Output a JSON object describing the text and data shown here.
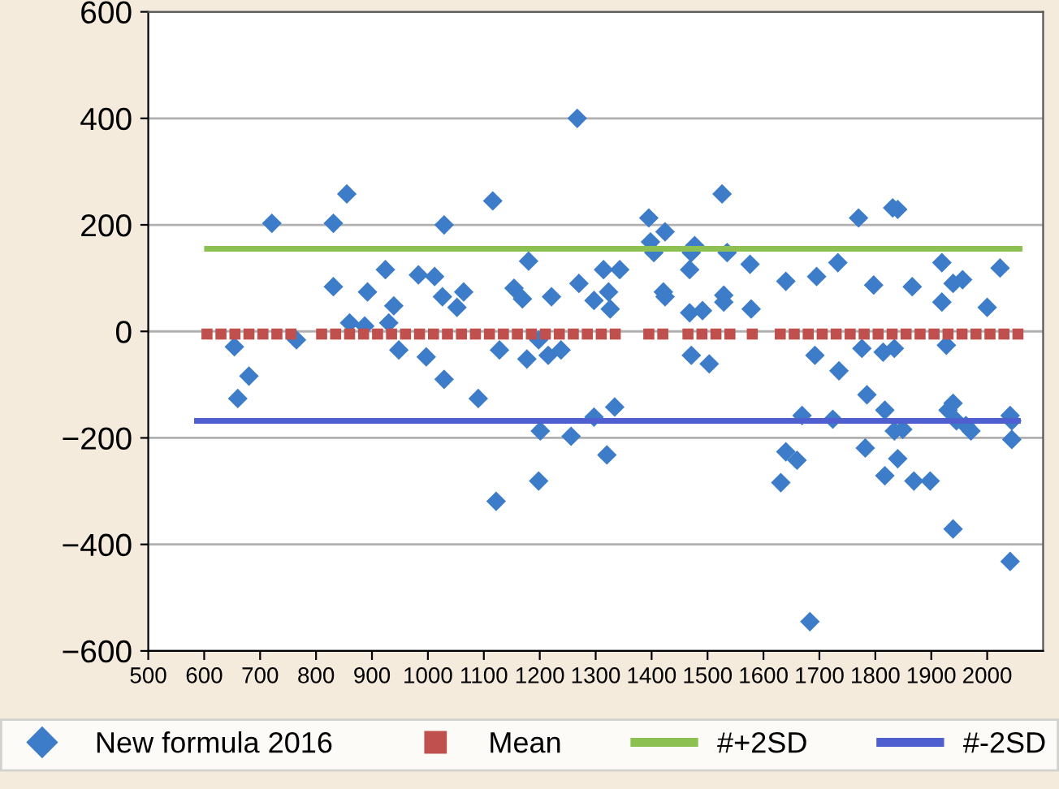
{
  "chart_data": {
    "type": "scatter",
    "xlim": [
      500,
      2100
    ],
    "ylim": [
      -600,
      600
    ],
    "xticks": [
      500,
      600,
      700,
      800,
      900,
      1000,
      1100,
      1200,
      1300,
      1400,
      1500,
      1600,
      1700,
      1800,
      1900,
      2000
    ],
    "yticks": [
      -600,
      -400,
      -200,
      0,
      200,
      400,
      600
    ],
    "grid": "y",
    "legend": "bottom",
    "series": [
      {
        "name": "New formula 2016",
        "marker": "diamond",
        "color": "#3d7cc9",
        "x": [
          654,
          765,
          721,
          831,
          831,
          855,
          860,
          887,
          892,
          924,
          930,
          939,
          948,
          983,
          1012,
          1029,
          1026,
          1052,
          1064,
          1116,
          1128,
          1180,
          1154,
          1169,
          1198,
          1221,
          1267,
          1270,
          660,
          680,
          997,
          1029,
          1090,
          1122,
          1177,
          1198,
          1201,
          1215,
          1238,
          1256,
          1297,
          1314,
          1323,
          1326,
          1343,
          1395,
          1398,
          1404,
          1424,
          1421,
          1424,
          1468,
          1471,
          1477,
          1468,
          1491,
          1526,
          1535,
          1529,
          1529,
          1576,
          1578,
          1640,
          1695,
          1733,
          1770,
          1797,
          1831,
          1840,
          1866,
          1919,
          1919,
          1939,
          1956,
          2000,
          2023,
          1471,
          1692,
          1776,
          1814,
          1834,
          1927,
          1297,
          1334,
          1320,
          1503,
          1631,
          1640,
          1660,
          1669,
          1683,
          1724,
          1735,
          1785,
          1782,
          1817,
          1817,
          1834,
          1849,
          1840,
          1869,
          1898,
          1930,
          1939,
          1945,
          1962,
          1971,
          1939,
          2041,
          2044,
          2044,
          2041
        ],
        "values": [
          -29,
          -16,
          203,
          203,
          84,
          258,
          16,
          10,
          74,
          116,
          16,
          48,
          -35,
          106,
          103,
          200,
          65,
          45,
          74,
          245,
          -35,
          132,
          81,
          61,
          -16,
          65,
          400,
          90,
          -126,
          -84,
          -48,
          -90,
          -126,
          -319,
          -52,
          -281,
          -187,
          -45,
          -35,
          -197,
          58,
          116,
          74,
          42,
          116,
          213,
          168,
          148,
          187,
          74,
          65,
          116,
          148,
          161,
          35,
          39,
          258,
          148,
          68,
          55,
          126,
          42,
          94,
          103,
          129,
          213,
          87,
          232,
          229,
          84,
          129,
          55,
          90,
          97,
          45,
          119,
          -45,
          -45,
          -32,
          -39,
          -32,
          -26,
          -161,
          -142,
          -232,
          -61,
          -284,
          -226,
          -242,
          -158,
          -545,
          -165,
          -74,
          -119,
          -219,
          -271,
          -148,
          -187,
          -184,
          -239,
          -281,
          -281,
          -148,
          -135,
          -168,
          -177,
          -187,
          -371,
          -158,
          -168,
          -203,
          -432
        ]
      },
      {
        "name": "Mean",
        "marker": "square",
        "color": "#c0504d",
        "x": [
          605,
          630,
          655,
          680,
          705,
          730,
          755,
          810,
          835,
          860,
          885,
          910,
          935,
          960,
          985,
          1010,
          1035,
          1060,
          1085,
          1110,
          1135,
          1160,
          1185,
          1210,
          1235,
          1260,
          1285,
          1310,
          1335,
          1395,
          1420,
          1465,
          1490,
          1515,
          1540,
          1580,
          1630,
          1655,
          1680,
          1705,
          1730,
          1755,
          1780,
          1805,
          1830,
          1855,
          1880,
          1905,
          1930,
          1955,
          1980,
          2005,
          2030,
          2055
        ],
        "values": [
          -5,
          -5,
          -5,
          -5,
          -5,
          -5,
          -5,
          -5,
          -5,
          -5,
          -5,
          -5,
          -5,
          -5,
          -5,
          -5,
          -5,
          -5,
          -5,
          -5,
          -5,
          -5,
          -5,
          -5,
          -5,
          -5,
          -5,
          -5,
          -5,
          -5,
          -5,
          -5,
          -5,
          -5,
          -5,
          -5,
          -5,
          -5,
          -5,
          -5,
          -5,
          -5,
          -5,
          -5,
          -5,
          -5,
          -5,
          -5,
          -5,
          -5,
          -5,
          -5,
          -5,
          -5
        ]
      },
      {
        "name": "#+2SD",
        "type": "line",
        "color": "#8cc152",
        "x": [
          605,
          2058
        ],
        "values": [
          155,
          155
        ]
      },
      {
        "name": "#-2SD",
        "type": "line",
        "color": "#4f5fd0",
        "x": [
          587,
          2055
        ],
        "values": [
          -168,
          -168
        ]
      }
    ]
  }
}
